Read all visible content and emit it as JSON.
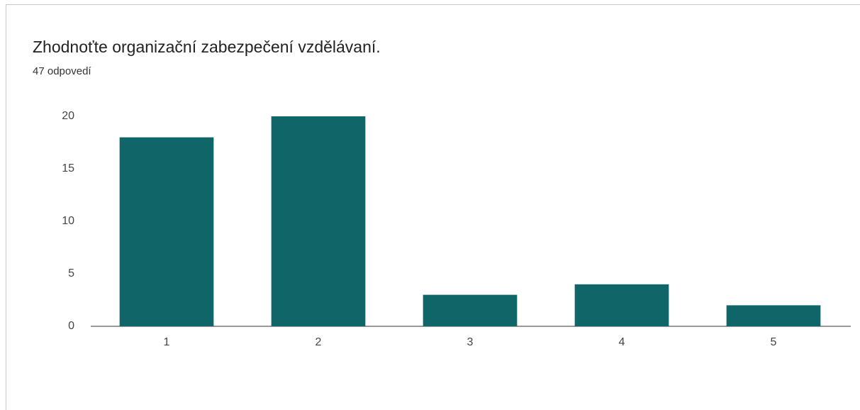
{
  "chart_data": {
    "type": "bar",
    "title": "Zhodnoťte organizační zabezpečení vzdělávaní.",
    "subtitle": "47 odpovedí",
    "categories": [
      "1",
      "2",
      "3",
      "4",
      "5"
    ],
    "values": [
      18,
      20,
      3,
      4,
      2
    ],
    "color": "#0f6568",
    "ylim": [
      0,
      20
    ],
    "yticks": [
      0,
      5,
      10,
      15,
      20
    ],
    "grid": false
  }
}
